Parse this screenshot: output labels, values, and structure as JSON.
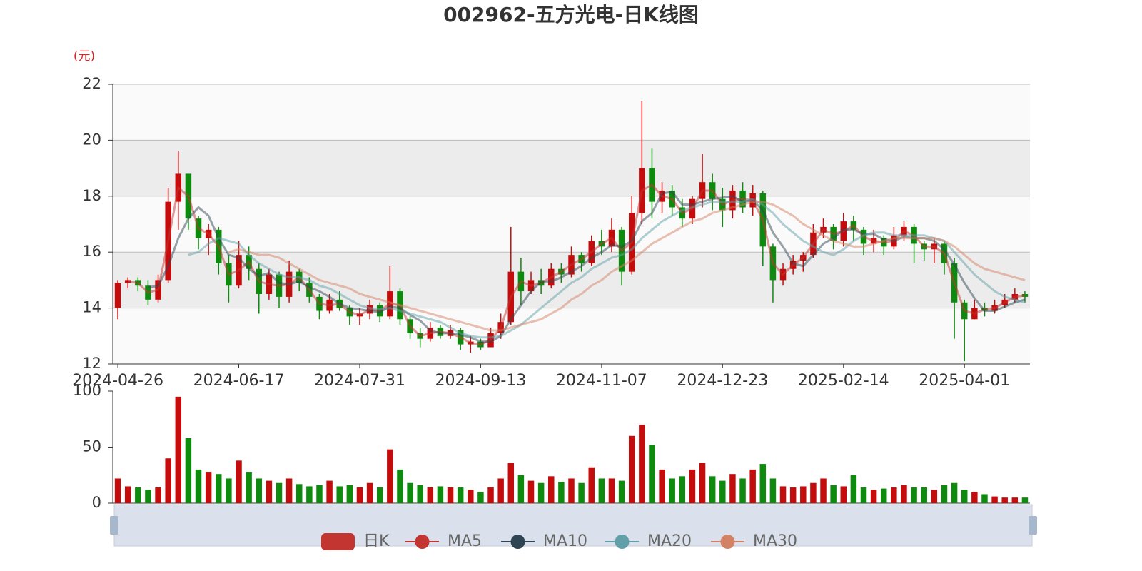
{
  "chart_data": {
    "type": "candlestick",
    "title": "002962-五方光电-日K线图",
    "y_unit": "(元)",
    "categories": [
      "2024-04-26",
      null,
      null,
      null,
      null,
      null,
      null,
      null,
      null,
      null,
      null,
      null,
      "2024-06-17",
      null,
      null,
      null,
      null,
      null,
      null,
      null,
      null,
      null,
      null,
      null,
      "2024-07-31",
      null,
      null,
      null,
      null,
      null,
      null,
      null,
      null,
      null,
      null,
      null,
      "2024-09-13",
      null,
      null,
      null,
      null,
      null,
      null,
      null,
      null,
      null,
      null,
      null,
      "2024-11-07",
      null,
      null,
      null,
      null,
      null,
      null,
      null,
      null,
      null,
      null,
      null,
      "2024-12-23",
      null,
      null,
      null,
      null,
      null,
      null,
      null,
      null,
      null,
      null,
      null,
      "2025-02-14",
      null,
      null,
      null,
      null,
      null,
      null,
      null,
      null,
      null,
      null,
      null,
      "2025-04-01",
      null,
      null,
      null,
      null,
      null,
      null
    ],
    "ylim": [
      12,
      22
    ],
    "yticks": [
      12,
      14,
      16,
      18,
      20,
      22
    ],
    "grid": true,
    "up_color": "#c40c0c",
    "down_color": "#0e8a0e",
    "series": [
      {
        "name": "日K",
        "color": "#c23531",
        "values": [
          [
            14.0,
            14.9,
            13.6,
            15.0
          ],
          [
            14.9,
            15.0,
            14.7,
            15.1
          ],
          [
            15.0,
            14.8,
            14.6,
            15.1
          ],
          [
            14.8,
            14.3,
            14.1,
            15.0
          ],
          [
            14.3,
            15.0,
            14.2,
            15.2
          ],
          [
            15.0,
            17.8,
            14.9,
            18.3
          ],
          [
            17.8,
            18.8,
            16.8,
            19.6
          ],
          [
            18.8,
            17.2,
            16.8,
            18.5
          ],
          [
            17.2,
            16.5,
            16.1,
            17.3
          ],
          [
            16.5,
            16.8,
            15.9,
            17.0
          ],
          [
            16.8,
            15.6,
            15.2,
            16.9
          ],
          [
            15.6,
            14.8,
            14.2,
            15.9
          ],
          [
            14.8,
            15.9,
            14.7,
            16.4
          ],
          [
            15.9,
            15.4,
            15.0,
            16.2
          ],
          [
            15.4,
            14.5,
            13.8,
            15.6
          ],
          [
            14.5,
            15.2,
            14.3,
            15.4
          ],
          [
            15.2,
            14.4,
            14.0,
            15.3
          ],
          [
            14.4,
            15.3,
            14.2,
            15.7
          ],
          [
            15.3,
            14.9,
            14.6,
            15.4
          ],
          [
            14.9,
            14.4,
            14.2,
            15.1
          ],
          [
            14.4,
            13.9,
            13.6,
            14.5
          ],
          [
            13.9,
            14.3,
            13.8,
            14.5
          ],
          [
            14.3,
            14.0,
            13.9,
            14.6
          ],
          [
            14.0,
            13.7,
            13.4,
            14.1
          ],
          [
            13.7,
            13.8,
            13.4,
            14.0
          ],
          [
            13.8,
            14.1,
            13.6,
            14.3
          ],
          [
            14.1,
            13.7,
            13.5,
            14.2
          ],
          [
            13.7,
            14.6,
            13.6,
            15.5
          ],
          [
            14.6,
            13.6,
            13.4,
            14.7
          ],
          [
            13.6,
            13.1,
            12.9,
            13.7
          ],
          [
            13.1,
            12.9,
            12.6,
            13.3
          ],
          [
            12.9,
            13.3,
            12.8,
            13.5
          ],
          [
            13.3,
            13.0,
            12.9,
            13.4
          ],
          [
            13.0,
            13.2,
            12.9,
            13.4
          ],
          [
            13.2,
            12.7,
            12.5,
            13.3
          ],
          [
            12.7,
            12.8,
            12.4,
            13.0
          ],
          [
            12.8,
            12.6,
            12.5,
            12.9
          ],
          [
            12.6,
            13.1,
            12.6,
            13.3
          ],
          [
            13.1,
            13.5,
            12.9,
            13.8
          ],
          [
            13.5,
            15.3,
            13.4,
            16.9
          ],
          [
            15.3,
            14.6,
            14.1,
            15.8
          ],
          [
            14.6,
            15.0,
            14.5,
            15.3
          ],
          [
            15.0,
            14.8,
            14.5,
            15.4
          ],
          [
            14.8,
            15.4,
            14.7,
            15.6
          ],
          [
            15.4,
            15.2,
            14.9,
            15.6
          ],
          [
            15.2,
            15.9,
            15.1,
            16.2
          ],
          [
            15.9,
            15.6,
            15.3,
            16.0
          ],
          [
            15.6,
            16.4,
            15.5,
            16.6
          ],
          [
            16.4,
            16.2,
            15.9,
            16.8
          ],
          [
            16.2,
            16.8,
            16.0,
            17.2
          ],
          [
            16.8,
            15.3,
            14.8,
            16.9
          ],
          [
            15.3,
            17.4,
            15.2,
            18.0
          ],
          [
            17.4,
            19.0,
            17.0,
            21.4
          ],
          [
            19.0,
            17.8,
            17.2,
            19.7
          ],
          [
            17.8,
            18.2,
            17.4,
            18.5
          ],
          [
            18.2,
            17.6,
            17.3,
            18.4
          ],
          [
            17.6,
            17.2,
            16.9,
            17.9
          ],
          [
            17.2,
            17.9,
            17.0,
            18.0
          ],
          [
            17.9,
            18.5,
            17.6,
            19.5
          ],
          [
            18.5,
            17.9,
            17.5,
            18.8
          ],
          [
            17.9,
            17.5,
            16.9,
            18.3
          ],
          [
            17.5,
            18.2,
            17.2,
            18.4
          ],
          [
            18.2,
            17.6,
            17.4,
            18.5
          ],
          [
            17.6,
            18.1,
            17.3,
            18.4
          ],
          [
            18.1,
            16.2,
            15.5,
            18.2
          ],
          [
            16.2,
            15.0,
            14.2,
            16.3
          ],
          [
            15.0,
            15.4,
            14.8,
            15.6
          ],
          [
            15.4,
            15.7,
            15.2,
            15.9
          ],
          [
            15.7,
            15.9,
            15.3,
            16.0
          ],
          [
            15.9,
            16.7,
            15.8,
            17.0
          ],
          [
            16.7,
            16.9,
            16.5,
            17.2
          ],
          [
            16.9,
            16.4,
            16.1,
            17.0
          ],
          [
            16.4,
            17.1,
            16.2,
            17.4
          ],
          [
            17.1,
            16.8,
            16.4,
            17.3
          ],
          [
            16.8,
            16.3,
            15.9,
            16.9
          ],
          [
            16.3,
            16.5,
            16.0,
            16.8
          ],
          [
            16.5,
            16.2,
            15.9,
            16.6
          ],
          [
            16.2,
            16.6,
            16.1,
            16.9
          ],
          [
            16.6,
            16.9,
            16.4,
            17.1
          ],
          [
            16.9,
            16.3,
            15.6,
            17.0
          ],
          [
            16.3,
            16.1,
            15.7,
            16.4
          ],
          [
            16.1,
            16.3,
            15.6,
            16.5
          ],
          [
            16.3,
            15.6,
            15.2,
            16.4
          ],
          [
            15.6,
            14.2,
            12.9,
            15.8
          ],
          [
            14.2,
            13.6,
            12.1,
            14.3
          ],
          [
            13.6,
            14.0,
            13.6,
            14.3
          ],
          [
            14.0,
            13.9,
            13.7,
            14.2
          ],
          [
            13.9,
            14.1,
            13.8,
            14.3
          ],
          [
            14.1,
            14.3,
            14.0,
            14.5
          ],
          [
            14.3,
            14.5,
            14.2,
            14.7
          ],
          [
            14.5,
            14.4,
            14.2,
            14.6
          ]
        ]
      },
      {
        "name": "MA5",
        "color": "#c23531",
        "values": [
          null,
          14.95,
          14.9,
          14.55,
          14.65,
          16.4,
          18.3,
          18.0,
          16.85,
          16.65,
          16.2,
          15.2,
          15.35,
          15.65,
          14.95,
          14.85,
          14.8,
          14.85,
          15.1,
          14.65,
          14.15,
          14.1,
          14.15,
          13.85,
          13.75,
          13.95,
          13.9,
          14.15,
          14.1,
          13.35,
          13.0,
          13.1,
          13.15,
          13.1,
          12.95,
          12.75,
          12.7,
          12.85,
          13.3,
          14.4,
          14.95,
          14.8,
          14.9,
          15.1,
          15.3,
          15.55,
          15.75,
          16.0,
          16.3,
          16.5,
          16.05,
          16.35,
          18.2,
          18.4,
          18.0,
          17.9,
          17.4,
          17.55,
          18.2,
          18.2,
          17.7,
          17.85,
          17.9,
          17.85,
          17.15,
          15.6,
          15.2,
          15.55,
          15.8,
          16.3,
          16.8,
          16.65,
          16.75,
          16.95,
          16.55,
          16.4,
          16.35,
          16.4,
          16.75,
          16.6,
          16.2,
          16.2,
          15.95,
          14.9,
          13.9,
          13.8,
          13.95,
          14.0,
          14.2,
          14.4,
          14.45
        ]
      },
      {
        "name": "MA10",
        "color": "#2f4554",
        "values": [
          null,
          null,
          null,
          14.75,
          14.78,
          15.5,
          16.5,
          17.2,
          17.6,
          17.3,
          16.5,
          15.9,
          15.8,
          15.4,
          15.15,
          15.25,
          14.9,
          14.85,
          14.95,
          14.75,
          14.6,
          14.4,
          14.15,
          14.0,
          13.95,
          13.9,
          13.85,
          14.05,
          14.0,
          13.75,
          13.55,
          13.2,
          13.1,
          13.1,
          13.05,
          12.95,
          12.8,
          12.8,
          13.0,
          13.6,
          14.1,
          14.6,
          14.95,
          14.95,
          15.1,
          15.3,
          15.5,
          15.8,
          16.0,
          16.25,
          16.2,
          16.4,
          17.1,
          17.4,
          18.1,
          18.15,
          17.7,
          17.7,
          17.8,
          17.9,
          17.95,
          18.0,
          17.8,
          17.85,
          17.5,
          16.7,
          16.2,
          15.6,
          15.5,
          15.9,
          16.3,
          16.5,
          16.8,
          16.8,
          16.65,
          16.65,
          16.45,
          16.4,
          16.55,
          16.5,
          16.5,
          16.4,
          16.1,
          15.55,
          14.9,
          14.35,
          13.9,
          13.9,
          14.05,
          14.2,
          14.3
        ]
      },
      {
        "name": "MA20",
        "color": "#61a0a8",
        "values": [
          null,
          null,
          null,
          null,
          null,
          null,
          null,
          15.9,
          16.0,
          16.3,
          16.5,
          16.4,
          16.3,
          15.9,
          15.6,
          15.4,
          15.2,
          15.1,
          15.1,
          15.0,
          14.8,
          14.7,
          14.5,
          14.3,
          14.1,
          14.0,
          13.95,
          14.0,
          13.9,
          13.8,
          13.7,
          13.6,
          13.5,
          13.3,
          13.1,
          13.0,
          12.95,
          12.95,
          13.0,
          13.2,
          13.4,
          13.7,
          14.0,
          14.3,
          14.6,
          14.9,
          15.1,
          15.4,
          15.6,
          15.8,
          15.9,
          16.1,
          16.5,
          16.8,
          17.1,
          17.3,
          17.5,
          17.6,
          17.7,
          17.8,
          17.8,
          17.8,
          17.8,
          17.9,
          17.7,
          17.4,
          17.0,
          16.7,
          16.4,
          16.2,
          16.0,
          15.9,
          16.1,
          16.4,
          16.6,
          16.7,
          16.7,
          16.6,
          16.6,
          16.6,
          16.6,
          16.5,
          16.4,
          16.0,
          15.6,
          15.2,
          14.9,
          14.6,
          14.4,
          14.3,
          14.2
        ]
      },
      {
        "name": "MA30",
        "color": "#d48265",
        "values": [
          null,
          null,
          null,
          null,
          null,
          null,
          null,
          null,
          null,
          null,
          null,
          16.0,
          16.1,
          16.0,
          15.9,
          15.9,
          15.8,
          15.6,
          15.4,
          15.2,
          15.0,
          14.9,
          14.8,
          14.7,
          14.5,
          14.4,
          14.3,
          14.2,
          14.1,
          14.0,
          13.9,
          13.8,
          13.7,
          13.6,
          13.5,
          13.4,
          13.3,
          13.2,
          13.2,
          13.3,
          13.4,
          13.5,
          13.6,
          13.8,
          14.0,
          14.3,
          14.5,
          14.8,
          15.0,
          15.3,
          15.5,
          15.7,
          16.0,
          16.3,
          16.5,
          16.7,
          16.9,
          17.1,
          17.2,
          17.4,
          17.5,
          17.6,
          17.7,
          17.8,
          17.8,
          17.7,
          17.5,
          17.3,
          17.0,
          16.8,
          16.6,
          16.4,
          16.3,
          16.2,
          16.2,
          16.3,
          16.4,
          16.5,
          16.5,
          16.5,
          16.5,
          16.5,
          16.4,
          16.2,
          15.9,
          15.6,
          15.4,
          15.3,
          15.2,
          15.1,
          15.0
        ]
      }
    ],
    "volume": {
      "ylim": [
        0,
        100
      ],
      "yticks": [
        0,
        50,
        100
      ],
      "values": [
        22,
        15,
        14,
        12,
        14,
        40,
        95,
        58,
        30,
        28,
        26,
        22,
        38,
        28,
        22,
        20,
        18,
        22,
        17,
        15,
        16,
        20,
        15,
        16,
        14,
        18,
        14,
        48,
        30,
        18,
        16,
        14,
        15,
        14,
        14,
        12,
        10,
        14,
        22,
        36,
        25,
        20,
        18,
        24,
        19,
        22,
        18,
        32,
        22,
        22,
        20,
        60,
        70,
        52,
        30,
        22,
        24,
        30,
        36,
        24,
        20,
        26,
        22,
        30,
        35,
        22,
        15,
        14,
        15,
        18,
        22,
        16,
        15,
        25,
        14,
        12,
        13,
        14,
        16,
        14,
        14,
        12,
        16,
        18,
        12,
        10,
        8,
        6,
        5,
        5,
        5
      ]
    }
  }
}
